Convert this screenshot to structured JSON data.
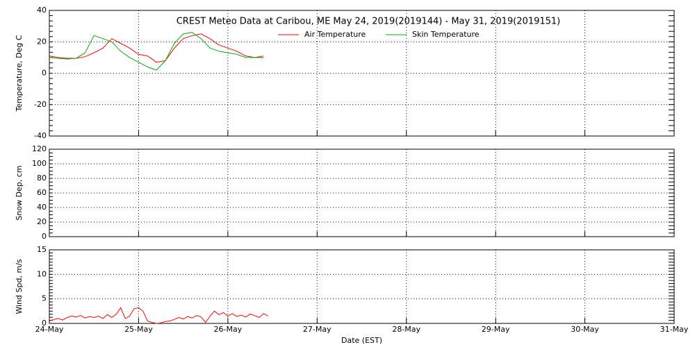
{
  "chart_data": [
    {
      "type": "line",
      "title": "CREST Meteo Data at Caribou, ME   May 24, 2019(2019144) - May 31, 2019(2019151)",
      "y_label": "Temperature, Deg C",
      "legend": "top",
      "x": [
        0,
        0.1,
        0.2,
        0.3,
        0.4,
        0.5,
        0.6,
        0.7,
        0.8,
        0.9,
        1.0,
        1.1,
        1.2,
        1.3,
        1.4,
        1.5,
        1.6,
        1.7,
        1.8,
        1.9,
        2.0,
        2.1,
        2.2,
        2.3,
        2.4
      ],
      "series": [
        {
          "name": "Air Temperature",
          "color": "#ff0000",
          "values": [
            11,
            10,
            9.5,
            9.5,
            10.5,
            13,
            16,
            22,
            19,
            16,
            12,
            11,
            7,
            8,
            16,
            22,
            24,
            25,
            22,
            18,
            16,
            14,
            11,
            10,
            10
          ]
        },
        {
          "name": "Skin Temperature",
          "color": "#00b000",
          "values": [
            10,
            9.5,
            9,
            9.5,
            13,
            24,
            22,
            20,
            14,
            10,
            7,
            4,
            2,
            8,
            19,
            25,
            26,
            22,
            16,
            14,
            13,
            12,
            10,
            10,
            11
          ]
        }
      ],
      "xlim": [
        0,
        7
      ],
      "xticks": [
        0,
        1,
        2,
        3,
        4,
        5,
        6,
        7
      ],
      "ylim": [
        -40,
        40
      ],
      "yticks": [
        -40,
        -20,
        0,
        20,
        40
      ],
      "grid": true
    },
    {
      "type": "line",
      "y_label": "Snow Dep, cm",
      "x": [],
      "series": [],
      "xlim": [
        0,
        7
      ],
      "xticks": [
        0,
        1,
        2,
        3,
        4,
        5,
        6,
        7
      ],
      "ylim": [
        0,
        120
      ],
      "yticks": [
        0,
        20,
        40,
        60,
        80,
        100,
        120
      ],
      "grid": true
    },
    {
      "type": "line",
      "y_label": "Wind Spd, m/s",
      "x_label": "Date (EST)",
      "x": [
        0,
        0.05,
        0.1,
        0.15,
        0.2,
        0.25,
        0.3,
        0.35,
        0.4,
        0.45,
        0.5,
        0.55,
        0.6,
        0.65,
        0.7,
        0.75,
        0.8,
        0.85,
        0.9,
        0.95,
        1.0,
        1.05,
        1.1,
        1.15,
        1.2,
        1.25,
        1.3,
        1.35,
        1.4,
        1.45,
        1.5,
        1.55,
        1.6,
        1.65,
        1.7,
        1.75,
        1.8,
        1.85,
        1.9,
        1.95,
        2.0,
        2.05,
        2.1,
        2.15,
        2.2,
        2.25,
        2.3,
        2.35,
        2.4,
        2.45
      ],
      "series": [
        {
          "name": "Wind Speed",
          "color": "#ff0000",
          "values": [
            0.5,
            0.8,
            1.0,
            0.7,
            1.2,
            1.5,
            1.3,
            1.6,
            1.1,
            1.4,
            1.2,
            1.5,
            1.0,
            1.8,
            1.2,
            1.9,
            3.2,
            1.0,
            1.5,
            3.0,
            3.2,
            2.5,
            0.5,
            0.2,
            0.0,
            0.1,
            0.4,
            0.5,
            0.8,
            1.2,
            0.9,
            1.4,
            1.1,
            1.6,
            1.3,
            0.2,
            1.5,
            2.5,
            1.8,
            2.2,
            1.5,
            2.0,
            1.4,
            1.7,
            1.3,
            1.9,
            1.6,
            1.2,
            2.0,
            1.5
          ]
        }
      ],
      "xlim": [
        0,
        7
      ],
      "xticks": [
        {
          "value": 0,
          "label": "24-May"
        },
        {
          "value": 1,
          "label": "25-May"
        },
        {
          "value": 2,
          "label": "26-May"
        },
        {
          "value": 3,
          "label": "27-May"
        },
        {
          "value": 4,
          "label": "28-May"
        },
        {
          "value": 5,
          "label": "29-May"
        },
        {
          "value": 6,
          "label": "30-May"
        },
        {
          "value": 7,
          "label": "31-May"
        }
      ],
      "ylim": [
        0,
        15
      ],
      "yticks": [
        0,
        5,
        10,
        15
      ],
      "grid": true
    }
  ]
}
